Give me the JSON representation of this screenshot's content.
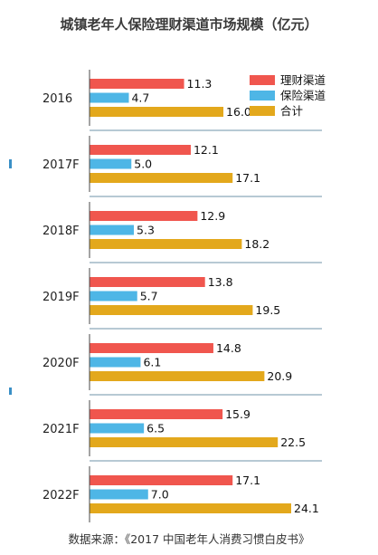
{
  "chart_data": {
    "type": "bar",
    "orientation": "horizontal",
    "title": "城镇老年人保险理财渠道市场规模（亿元）",
    "categories": [
      "2016",
      "2017F",
      "2018F",
      "2019F",
      "2020F",
      "2021F",
      "2022F"
    ],
    "series": [
      {
        "name": "理财渠道",
        "color": "#f0564e",
        "values": [
          11.3,
          12.1,
          12.9,
          13.8,
          14.8,
          15.9,
          17.1
        ]
      },
      {
        "name": "保险渠道",
        "color": "#4eb6e6",
        "values": [
          4.7,
          5.0,
          5.3,
          5.7,
          6.1,
          6.5,
          7.0
        ]
      },
      {
        "name": "合计",
        "color": "#e3a81c",
        "values": [
          16.0,
          17.1,
          18.2,
          19.5,
          20.9,
          22.5,
          24.1
        ]
      }
    ],
    "legend_position": "top-right",
    "data_labels": true,
    "grid": false,
    "xlim": [
      0,
      24.1
    ]
  },
  "source_note": "数据来源：《2017 中国老年人消费习惯白皮书》",
  "colors": {
    "separator": "#6f93a8",
    "axis": "#4a4a4a"
  }
}
